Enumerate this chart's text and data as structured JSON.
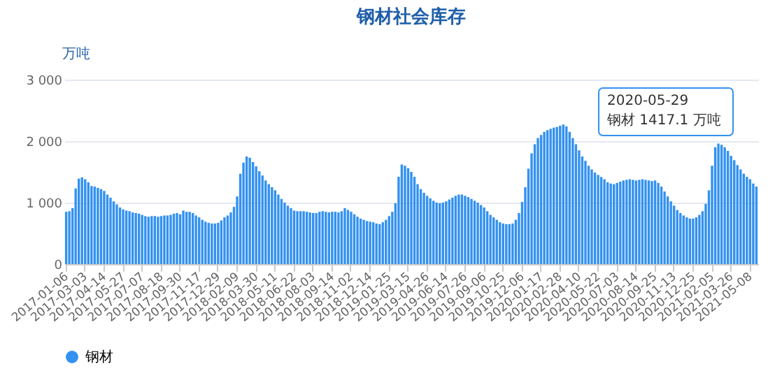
{
  "chart_data": {
    "type": "bar",
    "title": "钢材社会库存",
    "ylabel": "万吨",
    "categories": [
      "2017-01-06",
      null,
      null,
      null,
      null,
      null,
      "2017-03-03",
      null,
      null,
      null,
      null,
      null,
      "2017-04-14",
      null,
      null,
      null,
      null,
      null,
      "2017-05-27",
      null,
      null,
      null,
      null,
      null,
      "2017-07-07",
      null,
      null,
      null,
      null,
      null,
      "2017-08-18",
      null,
      null,
      null,
      null,
      null,
      "2017-09-30",
      null,
      null,
      null,
      null,
      null,
      "2017-11-17",
      null,
      null,
      null,
      null,
      null,
      "2017-12-29",
      null,
      null,
      null,
      null,
      null,
      "2018-02-09",
      null,
      null,
      null,
      null,
      null,
      "2018-03-30",
      null,
      null,
      null,
      null,
      null,
      "2018-05-11",
      null,
      null,
      null,
      null,
      null,
      "2018-06-22",
      null,
      null,
      null,
      null,
      null,
      "2018-08-03",
      null,
      null,
      null,
      null,
      null,
      "2018-09-14",
      null,
      null,
      null,
      null,
      null,
      "2018-11-02",
      null,
      null,
      null,
      null,
      null,
      "2018-12-14",
      null,
      null,
      null,
      null,
      null,
      "2019-01-25",
      null,
      null,
      null,
      null,
      null,
      "2019-03-15",
      null,
      null,
      null,
      null,
      null,
      "2019-04-26",
      null,
      null,
      null,
      null,
      null,
      "2019-06-14",
      null,
      null,
      null,
      null,
      null,
      "2019-07-26",
      null,
      null,
      null,
      null,
      null,
      "2019-09-06",
      null,
      null,
      null,
      null,
      null,
      "2019-10-25",
      null,
      null,
      null,
      null,
      null,
      "2019-12-06",
      null,
      null,
      null,
      null,
      null,
      "2020-01-17",
      null,
      null,
      null,
      null,
      null,
      "2020-02-28",
      null,
      null,
      null,
      null,
      null,
      "2020-04-10",
      null,
      null,
      null,
      null,
      null,
      "2020-05-22",
      null,
      null,
      null,
      null,
      null,
      "2020-07-03",
      null,
      null,
      null,
      null,
      null,
      "2020-08-14",
      null,
      null,
      null,
      null,
      null,
      "2020-09-25",
      null,
      null,
      null,
      null,
      null,
      "2020-11-13",
      null,
      null,
      null,
      null,
      null,
      "2020-12-25",
      null,
      null,
      null,
      null,
      null,
      "2021-02-05",
      null,
      null,
      null,
      null,
      null,
      "2021-03-26",
      null,
      null,
      null,
      null,
      null,
      "2021-05-08",
      null,
      null
    ],
    "series": [
      {
        "name": "钢材",
        "color": "#3391f0",
        "values": [
          850,
          860,
          910,
          1230,
          1390,
          1410,
          1380,
          1330,
          1270,
          1260,
          1240,
          1220,
          1190,
          1130,
          1080,
          1020,
          970,
          920,
          890,
          870,
          860,
          840,
          830,
          820,
          800,
          780,
          770,
          780,
          780,
          770,
          780,
          790,
          790,
          800,
          820,
          830,
          810,
          870,
          850,
          850,
          830,
          790,
          760,
          720,
          690,
          670,
          660,
          660,
          670,
          710,
          760,
          790,
          840,
          930,
          1100,
          1470,
          1650,
          1750,
          1730,
          1660,
          1590,
          1510,
          1440,
          1360,
          1300,
          1250,
          1200,
          1130,
          1060,
          1000,
          950,
          910,
          870,
          860,
          860,
          860,
          850,
          840,
          830,
          830,
          850,
          860,
          850,
          840,
          850,
          850,
          840,
          860,
          910,
          880,
          850,
          810,
          770,
          740,
          720,
          700,
          690,
          680,
          660,
          650,
          680,
          720,
          780,
          850,
          990,
          1420,
          1620,
          1600,
          1560,
          1500,
          1420,
          1300,
          1220,
          1160,
          1110,
          1070,
          1030,
          1000,
          990,
          1000,
          1020,
          1050,
          1080,
          1110,
          1130,
          1130,
          1110,
          1090,
          1060,
          1030,
          1000,
          960,
          920,
          860,
          800,
          760,
          720,
          680,
          660,
          650,
          650,
          660,
          720,
          830,
          1010,
          1250,
          1550,
          1800,
          1950,
          2050,
          2100,
          2150,
          2180,
          2200,
          2220,
          2230,
          2250,
          2270,
          2240,
          2150,
          2050,
          1950,
          1850,
          1750,
          1680,
          1600,
          1540,
          1490,
          1450,
          1417.1,
          1380,
          1330,
          1310,
          1300,
          1320,
          1340,
          1360,
          1370,
          1380,
          1370,
          1360,
          1370,
          1380,
          1370,
          1360,
          1350,
          1360,
          1320,
          1260,
          1180,
          1100,
          1020,
          950,
          880,
          830,
          790,
          760,
          740,
          740,
          760,
          800,
          860,
          980,
          1200,
          1600,
          1900,
          1960,
          1940,
          1900,
          1840,
          1760,
          1690,
          1610,
          1540,
          1470,
          1420,
          1380,
          1310,
          1260
        ]
      }
    ],
    "ylim": [
      0,
      3000
    ],
    "yticks": [
      0,
      {
        "value": 1000,
        "label": "1 000"
      },
      {
        "value": 2000,
        "label": "2 000"
      },
      {
        "value": 3000,
        "label": "3 000"
      }
    ],
    "grid": "y",
    "legend": "bottom",
    "annotations": [
      "2020-05-29\n钢材 1417.1 万吨"
    ]
  }
}
